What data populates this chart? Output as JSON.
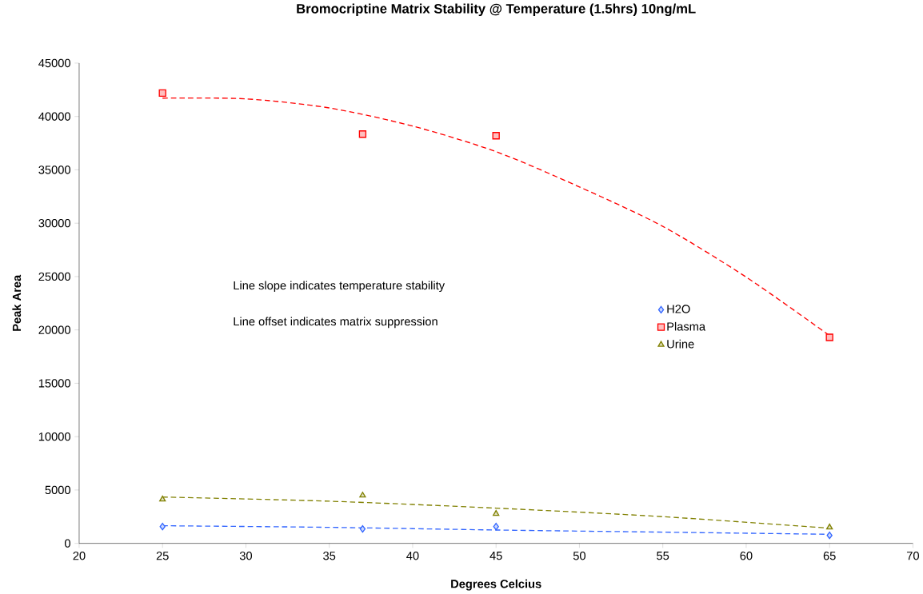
{
  "chart_data": {
    "type": "scatter",
    "title": "Bromocriptine Matrix Stability @ Temperature (1.5hrs) 10ng/mL",
    "xlabel": "Degrees Celcius",
    "ylabel": "Peak Area",
    "x": [
      25,
      37,
      45,
      65
    ],
    "series": [
      {
        "name": "H2O",
        "color": "#3366ff",
        "marker": "diamond",
        "values": [
          1570,
          1350,
          1570,
          750
        ]
      },
      {
        "name": "Plasma",
        "color": "#ff0000",
        "marker": "square",
        "values": [
          42200,
          38350,
          38200,
          19300
        ]
      },
      {
        "name": "Urine",
        "color": "#808000",
        "marker": "triangle",
        "values": [
          4120,
          4490,
          2770,
          1500
        ]
      },
      {
        "type": "line",
        "color": "#3366ff",
        "line_style": "dashed",
        "x": [
          25,
          35,
          45,
          55,
          65
        ],
        "values": [
          1650,
          1500,
          1250,
          1050,
          850
        ]
      },
      {
        "type": "line",
        "color": "#ff0000",
        "line_style": "dashed",
        "x": [
          25,
          30,
          35,
          40,
          45,
          50,
          55,
          60,
          65
        ],
        "values": [
          41720,
          41650,
          40800,
          39100,
          36700,
          33400,
          29700,
          24950,
          19470
        ]
      },
      {
        "type": "line",
        "color": "#808000",
        "line_style": "dashed",
        "x": [
          25,
          35,
          45,
          55,
          65
        ],
        "values": [
          4340,
          3950,
          3300,
          2500,
          1420
        ]
      }
    ],
    "xlim": [
      20,
      70
    ],
    "xticks": [
      20,
      25,
      30,
      35,
      40,
      45,
      50,
      55,
      60,
      65,
      70
    ],
    "ylim": [
      0,
      45000
    ],
    "yticks": [
      0,
      5000,
      10000,
      15000,
      20000,
      25000,
      30000,
      35000,
      40000,
      45000
    ],
    "grid": false,
    "legend": "right",
    "annotations": [
      "Line slope indicates temperature stability",
      "Line offset indicates matrix suppression"
    ]
  }
}
